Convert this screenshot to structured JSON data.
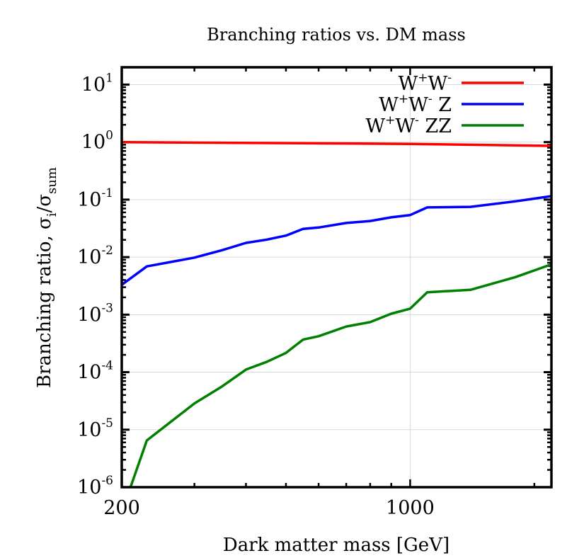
{
  "chart_data": {
    "type": "line",
    "title": "Branching ratios vs. DM mass",
    "xlabel": "Dark matter mass [GeV]",
    "ylabel": "Branching ratio, σ_i/σ_sum",
    "ylabel_parts": {
      "main": "Branching ratio, σ",
      "sub1": "i",
      "slash": "/σ",
      "sub2": "sum"
    },
    "x_scale": "log",
    "y_scale": "log",
    "xlim": [
      200,
      2200
    ],
    "ylim": [
      1e-06,
      20
    ],
    "grid": true,
    "legend_position": "top-right",
    "x_ticks": [
      {
        "value": 200,
        "label": "200"
      },
      {
        "value": 1000,
        "label": "1000"
      }
    ],
    "y_ticks": [
      {
        "value": 10,
        "base": "10",
        "exp": "1"
      },
      {
        "value": 1,
        "base": "10",
        "exp": "0"
      },
      {
        "value": 0.1,
        "base": "10",
        "exp": "-1"
      },
      {
        "value": 0.01,
        "base": "10",
        "exp": "-2"
      },
      {
        "value": 0.001,
        "base": "10",
        "exp": "-3"
      },
      {
        "value": 0.0001,
        "base": "10",
        "exp": "-4"
      },
      {
        "value": 1e-05,
        "base": "10",
        "exp": "-5"
      },
      {
        "value": 1e-06,
        "base": "10",
        "exp": "-6"
      }
    ],
    "series": [
      {
        "name": "W+W-",
        "legend": [
          {
            "t": "W"
          },
          {
            "sup": "+"
          },
          {
            "t": "W"
          },
          {
            "sup": "-"
          }
        ],
        "color": "#ff0000",
        "x": [
          200,
          1000,
          2200
        ],
        "y": [
          1.0,
          0.93,
          0.86
        ]
      },
      {
        "name": "W+W- Z",
        "legend": [
          {
            "t": "W"
          },
          {
            "sup": "+"
          },
          {
            "t": "W"
          },
          {
            "sup": "-"
          },
          {
            "t": " Z"
          }
        ],
        "color": "#0000ff",
        "x": [
          200,
          230,
          300,
          350,
          400,
          450,
          500,
          550,
          600,
          700,
          800,
          900,
          1000,
          1100,
          1400,
          1800,
          2200
        ],
        "y": [
          0.0033,
          0.0069,
          0.0098,
          0.0132,
          0.0177,
          0.0202,
          0.0237,
          0.031,
          0.0327,
          0.0392,
          0.0425,
          0.0492,
          0.0539,
          0.0731,
          0.0748,
          0.0935,
          0.115
        ]
      },
      {
        "name": "W+W- ZZ",
        "legend": [
          {
            "t": "W"
          },
          {
            "sup": "+"
          },
          {
            "t": "W"
          },
          {
            "sup": "-"
          },
          {
            "t": " ZZ"
          }
        ],
        "color": "#008000",
        "x": [
          210,
          230,
          300,
          350,
          400,
          450,
          500,
          550,
          600,
          700,
          800,
          900,
          1000,
          1100,
          1400,
          1800,
          2200
        ],
        "y": [
          1e-06,
          6.5e-06,
          2.85e-05,
          5.65e-05,
          0.000111,
          0.000152,
          0.000216,
          0.000368,
          0.000422,
          0.000622,
          0.000742,
          0.00104,
          0.00127,
          0.00245,
          0.0027,
          0.0045,
          0.0075
        ]
      }
    ]
  }
}
